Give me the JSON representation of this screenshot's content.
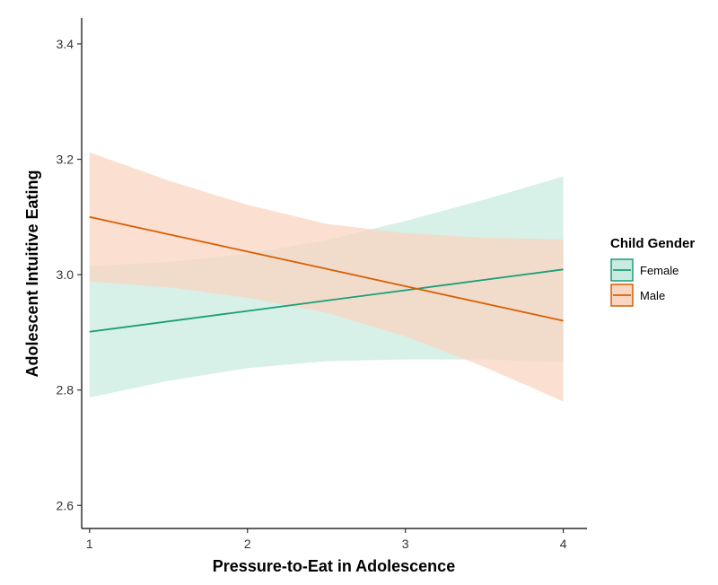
{
  "chart_data": {
    "type": "line",
    "title": "",
    "xlabel": "Pressure-to-Eat in Adolescence",
    "ylabel": "Adolescent Intuitive Eating",
    "x_ticks": [
      1,
      2,
      3,
      4
    ],
    "y_ticks": [
      "2.6",
      "2.8",
      "3.0",
      "3.2",
      "3.4"
    ],
    "xlim": [
      0.95,
      4.15
    ],
    "ylim": [
      2.56,
      3.445
    ],
    "grid": false,
    "legend": {
      "title": "Child Gender",
      "position": "right"
    },
    "series": [
      {
        "name": "Female",
        "color": "#1b9e77",
        "fill_color": "#c9ebe0",
        "x": [
          1,
          1.5,
          2,
          2.5,
          3,
          3.5,
          4
        ],
        "y": [
          2.901,
          2.919,
          2.937,
          2.955,
          2.973,
          2.991,
          3.009
        ],
        "ci_lower": [
          2.787,
          2.816,
          2.838,
          2.85,
          2.853,
          2.853,
          2.848
        ],
        "ci_upper": [
          3.015,
          3.022,
          3.036,
          3.06,
          3.093,
          3.13,
          3.17
        ]
      },
      {
        "name": "Male",
        "color": "#d95f02",
        "fill_color": "#f9d6c2",
        "x": [
          1,
          1.5,
          2,
          2.5,
          3,
          3.5,
          4
        ],
        "y": [
          3.1,
          3.07,
          3.04,
          3.01,
          2.98,
          2.95,
          2.92
        ],
        "ci_lower": [
          2.988,
          2.978,
          2.96,
          2.934,
          2.893,
          2.84,
          2.78
        ],
        "ci_upper": [
          3.212,
          3.163,
          3.121,
          3.088,
          3.072,
          3.064,
          3.061
        ]
      }
    ]
  }
}
